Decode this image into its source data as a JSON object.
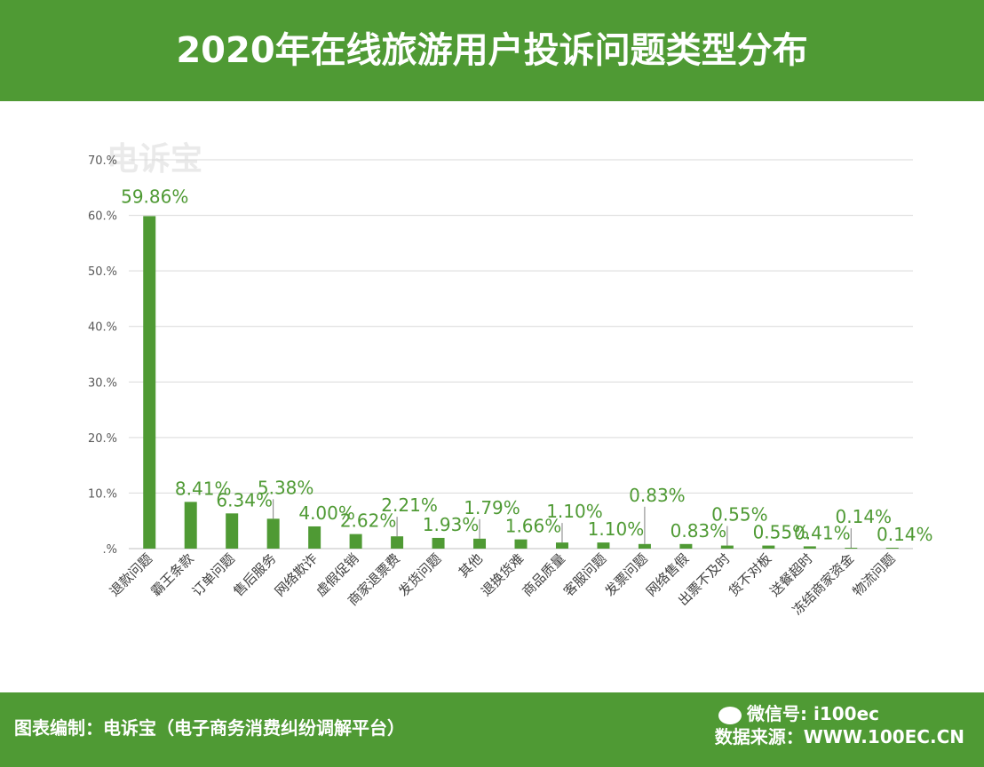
{
  "header": {
    "title": "2020年在线旅游用户投诉问题类型分布"
  },
  "footer": {
    "left": "图表编制：电诉宝（电子商务消费纠纷调解平台）",
    "right": "数据来源：WWW.100EC.CN",
    "wechat": "微信号: i100ec"
  },
  "watermark": {
    "text": "电诉宝"
  },
  "colors": {
    "bar": "#4f9a34",
    "label": "#4f9a34",
    "header": "#4f9a34",
    "grid": "#d9d9d9"
  },
  "chart_data": {
    "type": "bar",
    "title": "",
    "xlabel": "",
    "ylabel": "",
    "ylim": [
      0,
      70
    ],
    "grid": true,
    "y_ticks": [
      ".%",
      "10.%",
      "20.%",
      "30.%",
      "40.%",
      "50.%",
      "60.%",
      "70.%"
    ],
    "categories": [
      "退款问题",
      "霸王条款",
      "订单问题",
      "售后服务",
      "网络欺诈",
      "虚假促销",
      "商家退票费",
      "发货问题",
      "其他",
      "退换货难",
      "商品质量",
      "客服问题",
      "发票问题",
      "网络售假",
      "出票不及时",
      "货不对板",
      "送餐超时",
      "冻结商家资金",
      "物流问题"
    ],
    "values": [
      59.86,
      8.41,
      6.34,
      5.38,
      4.0,
      2.62,
      2.21,
      1.93,
      1.79,
      1.66,
      1.1,
      1.1,
      0.83,
      0.83,
      0.55,
      0.55,
      0.41,
      0.14,
      0.14
    ],
    "value_labels": [
      "59.86%",
      "8.41%",
      "6.34%",
      "5.38%",
      "4.00%",
      "2.62%",
      "2.21%",
      "1.93%",
      "1.79%",
      "1.66%",
      "1.10%",
      "1.10%",
      "0.83%",
      "0.83%",
      "0.55%",
      "0.55%",
      "0.41%",
      "0.14%",
      "0.14%"
    ],
    "label_heights": [
      40,
      0,
      0,
      20,
      0,
      0,
      20,
      0,
      20,
      0,
      20,
      0,
      40,
      0,
      20,
      0,
      0,
      20,
      0
    ]
  }
}
